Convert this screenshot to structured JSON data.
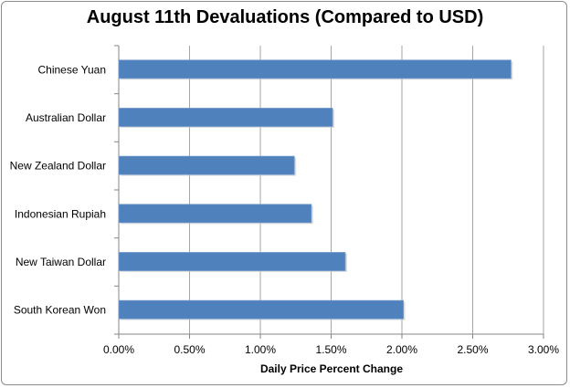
{
  "chart_data": {
    "type": "bar",
    "orientation": "horizontal",
    "title": "August 11th Devaluations (Compared to USD)",
    "xlabel": "Daily Price Percent Change",
    "ylabel": "",
    "categories": [
      "Chinese Yuan",
      "Australian Dollar",
      "New Zealand Dollar",
      "Indonesian Rupiah",
      "New Taiwan Dollar",
      "South Korean Won"
    ],
    "values": [
      2.77,
      1.51,
      1.24,
      1.36,
      1.6,
      2.01
    ],
    "value_unit": "%",
    "xlim": [
      0,
      3
    ],
    "xticks": [
      "0.00%",
      "0.50%",
      "1.00%",
      "1.50%",
      "2.00%",
      "2.50%",
      "3.00%"
    ],
    "grid": "vertical",
    "legend": "none",
    "bar_color": "#4f81bd"
  }
}
